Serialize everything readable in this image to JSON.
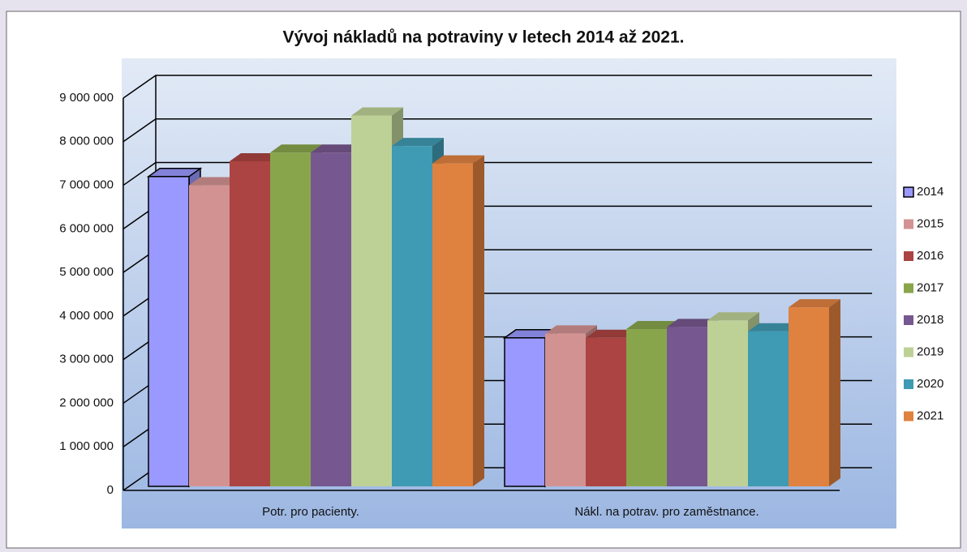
{
  "chart_data": {
    "type": "bar3d",
    "title": "Vývoj nákladů na potraviny v letech 2014 až 2021.",
    "categories": [
      "Potr. pro pacienty.",
      "Nákl. na potrav. pro zaměstnance."
    ],
    "series": [
      {
        "name": "2014",
        "color": "#9999ff",
        "values": [
          7200000,
          3500000
        ]
      },
      {
        "name": "2015",
        "color": "#d39292",
        "values": [
          7000000,
          3600000
        ]
      },
      {
        "name": "2016",
        "color": "#ab4442",
        "values": [
          7550000,
          3500000
        ]
      },
      {
        "name": "2017",
        "color": "#89a54c",
        "values": [
          7750000,
          3700000
        ]
      },
      {
        "name": "2018",
        "color": "#77578f",
        "values": [
          7750000,
          3750000
        ]
      },
      {
        "name": "2019",
        "color": "#bdd197",
        "values": [
          8600000,
          3900000
        ]
      },
      {
        "name": "2020",
        "color": "#3f9ab3",
        "values": [
          7900000,
          3650000
        ]
      },
      {
        "name": "2021",
        "color": "#df813f",
        "values": [
          7500000,
          4200000
        ]
      }
    ],
    "ylim": [
      0,
      9000000
    ],
    "yticks": [
      0,
      {
        "value": 1000000,
        "label": "1 000 000"
      },
      {
        "value": 2000000,
        "label": "2 000 000"
      },
      {
        "value": 3000000,
        "label": "3 000 000"
      },
      {
        "value": 4000000,
        "label": "4 000 000"
      },
      {
        "value": 5000000,
        "label": "5 000 000"
      },
      {
        "value": 6000000,
        "label": "6 000 000"
      },
      {
        "value": 7000000,
        "label": "7 000 000"
      },
      {
        "value": 8000000,
        "label": "8 000 000"
      },
      {
        "value": 9000000,
        "label": "9 000 000"
      }
    ],
    "grid": true,
    "legend": "right"
  }
}
